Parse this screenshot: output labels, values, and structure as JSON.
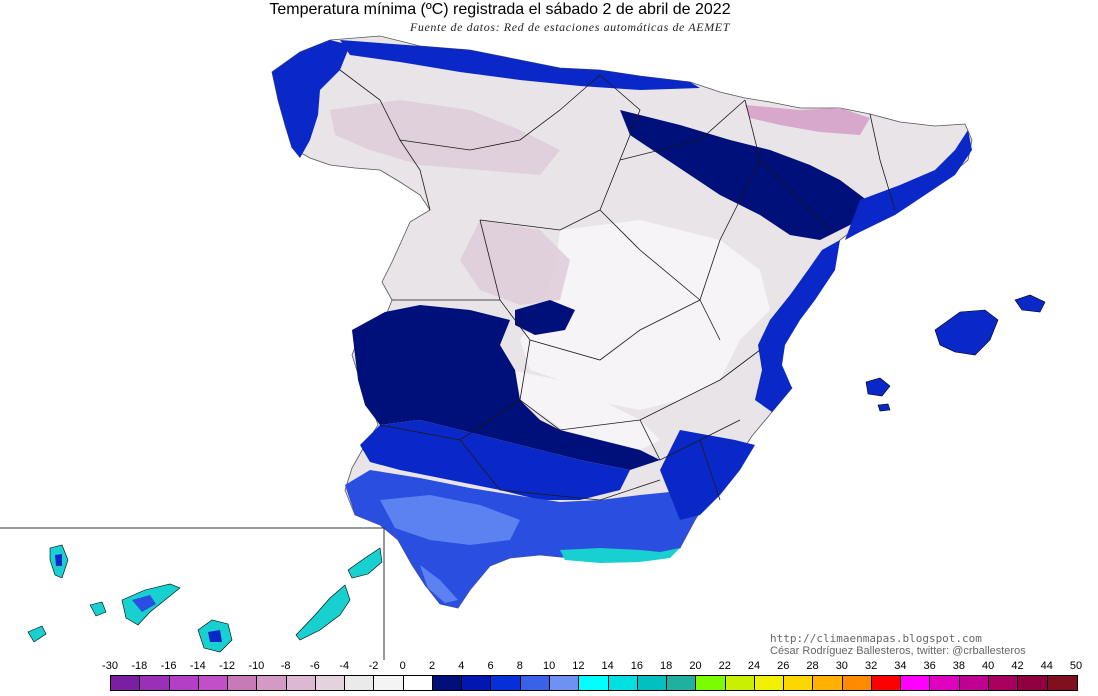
{
  "header": {
    "title": "Temperatura mínima (ºC) registrada el sábado 2 de abril de 2022",
    "source": "Fuente de datos: Red de estaciones automáticas de AEMET"
  },
  "credits": {
    "url": "http://climaenmapas.blogspot.com",
    "author": "César Rodríguez Ballesteros, twitter: @crballesteros"
  },
  "legend": {
    "labels": [
      "-30",
      "-18",
      "-16",
      "-14",
      "-12",
      "-10",
      "-8",
      "-6",
      "-4",
      "-2",
      "0",
      "2",
      "4",
      "6",
      "8",
      "10",
      "12",
      "14",
      "16",
      "18",
      "20",
      "22",
      "24",
      "26",
      "28",
      "30",
      "32",
      "34",
      "36",
      "38",
      "40",
      "42",
      "44",
      "50"
    ],
    "colors": [
      "#7a1fa2",
      "#9a2fb8",
      "#b23fc6",
      "#c24fc8",
      "#c87ab8",
      "#d49ac4",
      "#ddb8d2",
      "#e4d2de",
      "#eaeaea",
      "#f4f4f4",
      "#ffffff",
      "#000f7a",
      "#0018b0",
      "#0530d8",
      "#3a62e8",
      "#6e92f2",
      "#00ffff",
      "#00e0e0",
      "#00c0c0",
      "#20b0a0",
      "#7cfc00",
      "#c8f000",
      "#f0f000",
      "#ffd700",
      "#ffb000",
      "#ff8c00",
      "#ff0000",
      "#ff00ff",
      "#e000c0",
      "#c00090",
      "#a80060",
      "#900040",
      "#801020"
    ]
  },
  "map_colors": {
    "sea": "#ffffff",
    "cold_land": "#e8e4e8",
    "frost_land": "#f6f4f6",
    "hill_frost": "#dccbd8",
    "peak": "#d8a8cc",
    "mild_dark": "#00107a",
    "mild_blue": "#0a28c8",
    "mild_mid": "#2a4ee0",
    "mild_light": "#5b82f0",
    "warm_cyan": "#18d0d0",
    "border": "#1a1a1a"
  }
}
